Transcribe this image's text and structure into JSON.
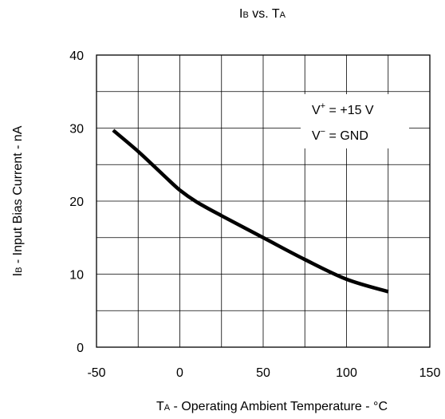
{
  "chart_data": {
    "type": "line",
    "title": {
      "main": "I",
      "sub": "B",
      "mid": " vs. T",
      "sub2": "A"
    },
    "xlabel": {
      "pre": "T",
      "sub": "A",
      "post": " - Operating Ambient Temperature - °C"
    },
    "ylabel": {
      "pre": "I",
      "sub": "B",
      "post": " - Input Bias Current - nA"
    },
    "xlim": [
      -50,
      150
    ],
    "ylim": [
      0,
      40
    ],
    "x_ticks": [
      -50,
      0,
      50,
      100,
      150
    ],
    "y_ticks": [
      0,
      10,
      20,
      30,
      40
    ],
    "grid": true,
    "grid_step_x": 25,
    "grid_step_y": 5,
    "annotation": {
      "line1": {
        "pre": "V",
        "sup": "+",
        "post": " = +15 V"
      },
      "line2": {
        "pre": "V",
        "sup": "−",
        "post": " = GND"
      }
    },
    "series": [
      {
        "x": [
          -40,
          -25,
          -10,
          0,
          10,
          25,
          50,
          75,
          100,
          125
        ],
        "values": [
          29.7,
          26.8,
          23.6,
          21.5,
          19.9,
          18.0,
          15.0,
          12.0,
          9.3,
          7.6
        ]
      }
    ]
  }
}
